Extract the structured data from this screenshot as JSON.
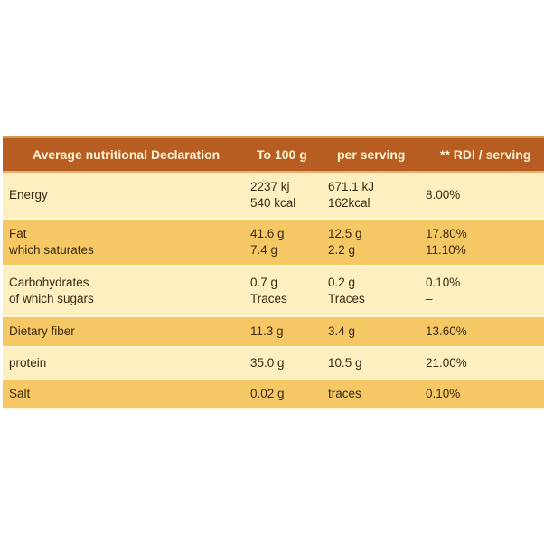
{
  "headers": {
    "col1": "Average nutritional Declaration",
    "col2": "To 100 g",
    "col3": "per serving",
    "col4": "** RDI / serving"
  },
  "rows": [
    {
      "label": [
        "Energy"
      ],
      "per100": [
        "2237 kj",
        "540 kcal"
      ],
      "serving": [
        "671.1 kJ",
        "162kcal"
      ],
      "rdi": [
        "8.00%"
      ]
    },
    {
      "label": [
        "Fat",
        "which saturates"
      ],
      "per100": [
        "41.6 g",
        "7.4 g"
      ],
      "serving": [
        "12.5 g",
        "2.2 g"
      ],
      "rdi": [
        "17.80%",
        "11.10%"
      ]
    },
    {
      "label": [
        "Carbohydrates",
        "of which sugars"
      ],
      "per100": [
        "0.7 g",
        "Traces"
      ],
      "serving": [
        "0.2 g",
        "Traces"
      ],
      "rdi": [
        "0.10%",
        "–"
      ]
    },
    {
      "label": [
        "Dietary fiber"
      ],
      "per100": [
        "11.3 g"
      ],
      "serving": [
        "3.4 g"
      ],
      "rdi": [
        "13.60%"
      ]
    },
    {
      "label": [
        "protein"
      ],
      "per100": [
        "35.0 g"
      ],
      "serving": [
        "10.5 g"
      ],
      "rdi": [
        "21.00%"
      ]
    },
    {
      "label": [
        "Salt"
      ],
      "per100": [
        "0.02 g"
      ],
      "serving": [
        "traces"
      ],
      "rdi": [
        "0.10%"
      ]
    }
  ],
  "colors": {
    "header_bg": "#b75d22",
    "row_light": "#fdefc0",
    "row_dark": "#f5c765"
  }
}
